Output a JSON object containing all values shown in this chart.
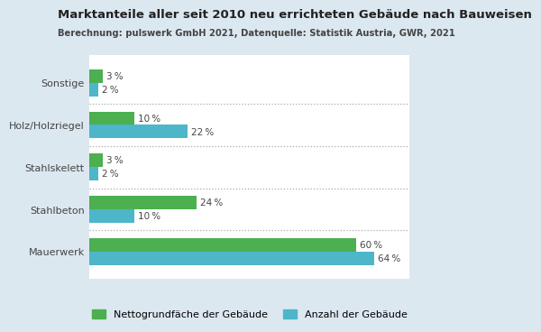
{
  "title": "Marktanteile aller seit 2010 neu errichteten Gebäude nach Bauweisen",
  "subtitle": "Berechnung: pulswerk GmbH 2021, Datenquelle: Statistik Austria, GWR, 2021",
  "categories": [
    "Mauerwerk",
    "Stahlbeton",
    "Stahlskelett",
    "Holz/Holzriegel",
    "Sonstige"
  ],
  "green_values": [
    60,
    24,
    3,
    10,
    3
  ],
  "blue_values": [
    64,
    10,
    2,
    22,
    2
  ],
  "green_color": "#4caf50",
  "blue_color": "#4db6c8",
  "green_label": "Nettogrundfäche der Gebäude",
  "blue_label": "Anzahl der Gebäude",
  "outer_bg": "#dce8f0",
  "plot_bg": "#ffffff",
  "xlim": [
    0,
    72
  ],
  "bar_height": 0.32,
  "title_fontsize": 9.5,
  "subtitle_fontsize": 7.2,
  "tick_fontsize": 8,
  "legend_fontsize": 8,
  "value_fontsize": 7.5
}
